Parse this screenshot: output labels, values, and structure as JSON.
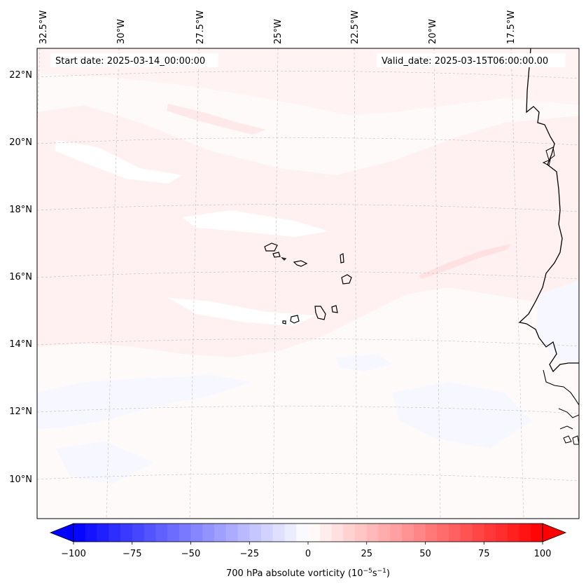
{
  "map": {
    "start_date_label": "Start date: 2025-03-14_00:00:00",
    "valid_date_label": "Valid_date: 2025-03-15T06:00:00.00",
    "lon_labels": [
      "32.5°W",
      "30°W",
      "27.5°W",
      "25°W",
      "22.5°W",
      "20°W",
      "17.5°W"
    ],
    "lat_labels": [
      "22°N",
      "20°N",
      "18°N",
      "16°N",
      "14°N",
      "12°N",
      "10°N"
    ],
    "region_description_colors": {
      "positive_weak": "#fff3f3",
      "positive_mild": "#ffe2e2",
      "negative_weak": "#f7f8ff",
      "coastline": "#000000"
    }
  },
  "colorbar": {
    "label_prefix": "700 hPa absolute vorticity (10",
    "label_exp1": "−5",
    "label_mid": "s",
    "label_exp2": "−1",
    "label_suffix": ")",
    "ticks": [
      "−100",
      "−75",
      "−50",
      "−25",
      "0",
      "25",
      "50",
      "75",
      "100"
    ],
    "min": -100,
    "max": 100,
    "levels": 40,
    "neg_color": "#0000ff",
    "pos_color": "#ff0000"
  }
}
